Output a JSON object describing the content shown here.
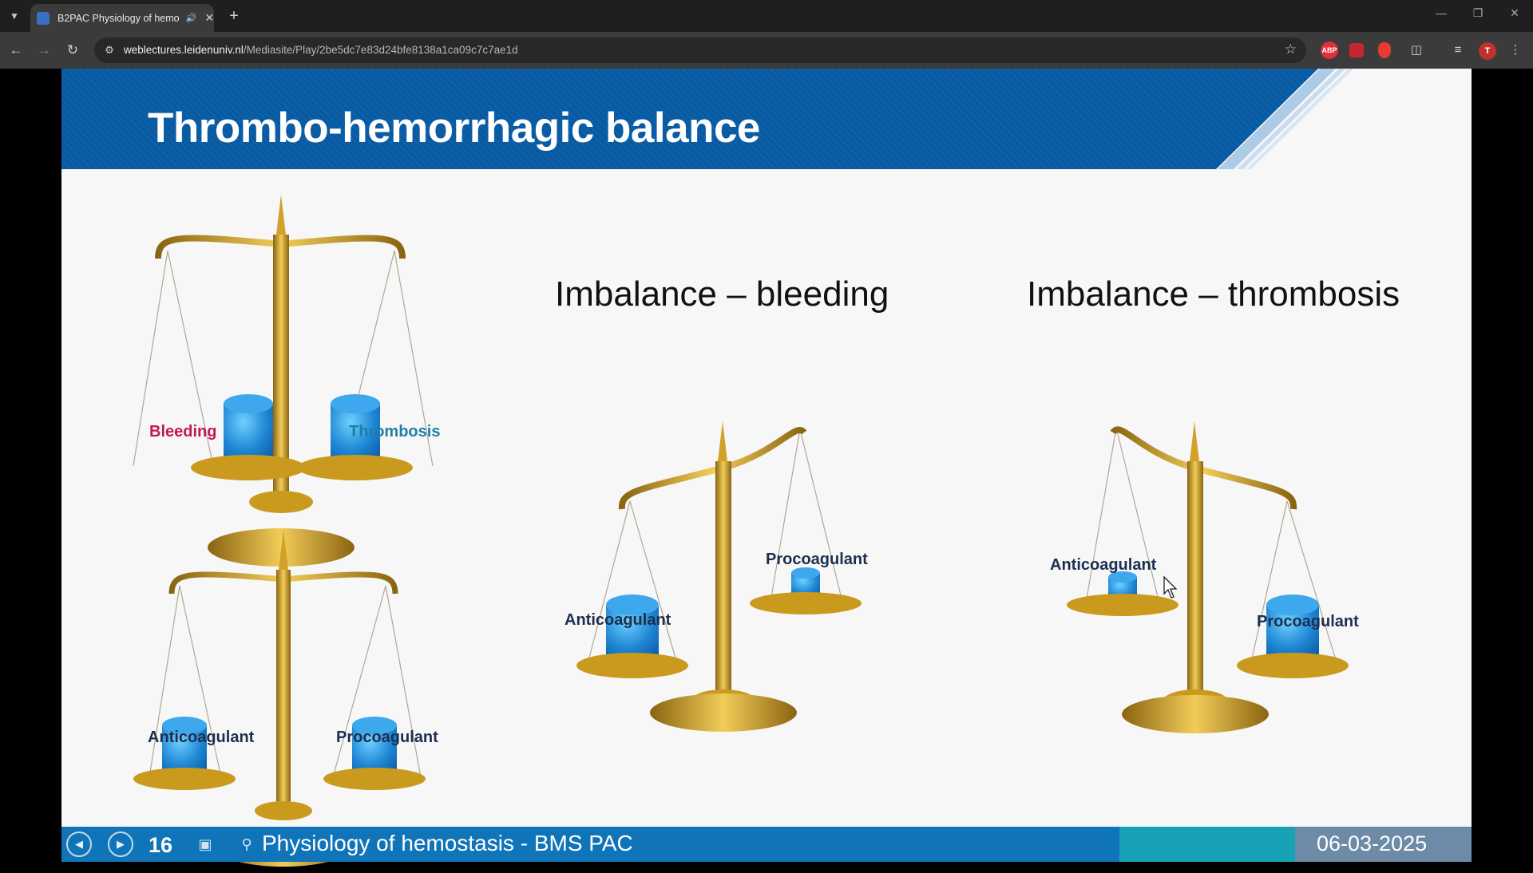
{
  "browser": {
    "tab": {
      "title": "B2PAC Physiology of hemo",
      "audio_icon": "speaker-icon",
      "close_icon": "close-icon"
    },
    "new_tab_icon": "plus-icon",
    "url": {
      "host": "weblectures.leidenuniv.nl",
      "path": "/Mediasite/Play/2be5dc7e83d24bfe8138a1ca09c7c7ae1d"
    },
    "extensions": [
      {
        "name": "adblock-plus-icon",
        "label": "ABP",
        "color": "#e0303a"
      },
      {
        "name": "lock-extension-icon",
        "label": "",
        "color": "#e0303a"
      },
      {
        "name": "red-extension-icon",
        "label": "",
        "color": "#e0303a"
      }
    ],
    "profile_initial": "T"
  },
  "slide": {
    "title": "Thrombo-hemorrhagic balance",
    "headings": {
      "bleeding": "Imbalance – bleeding",
      "thrombosis": "Imbalance – thrombosis"
    },
    "labels": {
      "balanced_left": "Bleeding",
      "balanced_right": "Thrombosis",
      "balanced2_left": "Anticoagulant",
      "balanced2_right": "Procoagulant",
      "bleeding_left": "Anticoagulant",
      "bleeding_right": "Procoagulant",
      "thrombosis_left": "Anticoagulant",
      "thrombosis_right": "Procoagulant"
    },
    "colors": {
      "header_blue": "#0a5ea5",
      "gold": "#c99a1e",
      "weight_blue": "#1e86d4",
      "bleeding_label": "#c0185a",
      "thrombosis_label": "#1f7fa8"
    }
  },
  "player": {
    "prev_icon": "previous-slide-icon",
    "next_icon": "next-slide-icon",
    "slide_number": "16",
    "footer_text": "Physiology of hemostasis - BMS PAC",
    "date": "06-03-2025"
  }
}
